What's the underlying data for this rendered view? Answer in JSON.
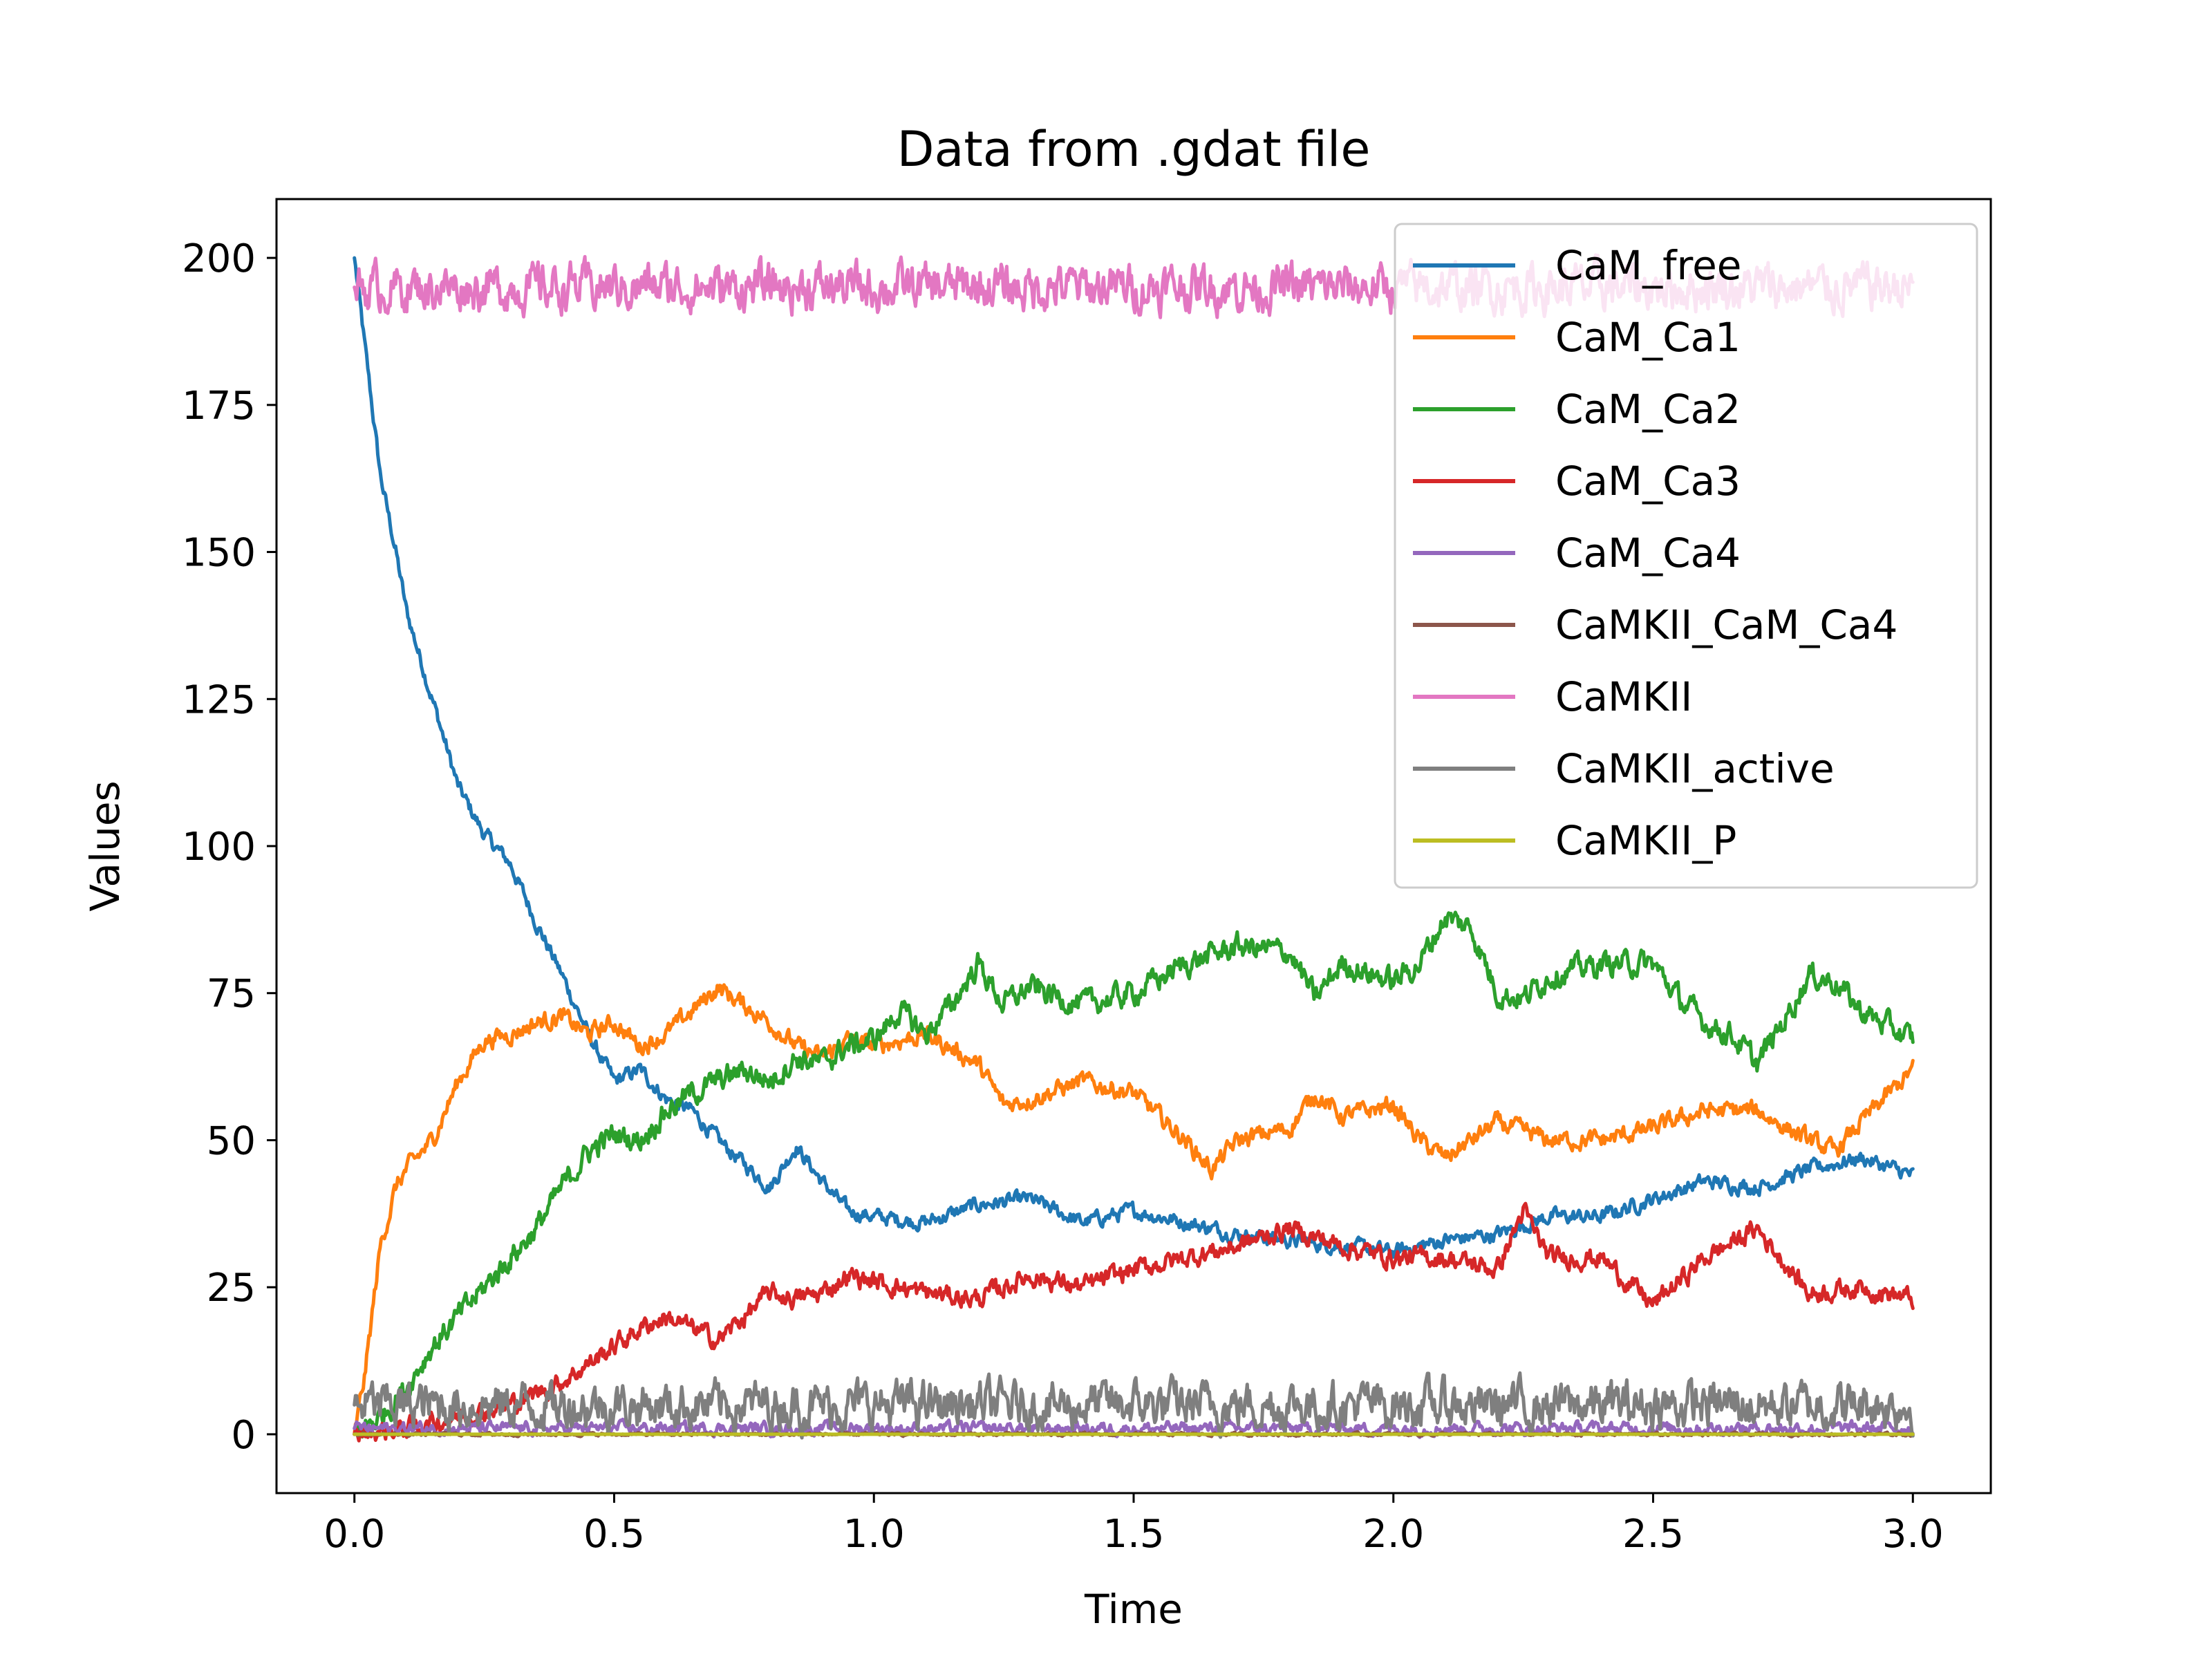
{
  "chart_data": {
    "type": "line",
    "title": "Data from .gdat file",
    "xlabel": "Time",
    "ylabel": "Values",
    "xlim": [
      -0.15,
      3.15
    ],
    "ylim": [
      -10,
      210
    ],
    "xticks": [
      0.0,
      0.5,
      1.0,
      1.5,
      2.0,
      2.5,
      3.0
    ],
    "xtick_labels": [
      "0.0",
      "0.5",
      "1.0",
      "1.5",
      "2.0",
      "2.5",
      "3.0"
    ],
    "yticks": [
      0,
      25,
      50,
      75,
      100,
      125,
      150,
      175,
      200
    ],
    "ytick_labels": [
      "0",
      "25",
      "50",
      "75",
      "100",
      "125",
      "150",
      "175",
      "200"
    ],
    "grid": false,
    "legend_position": "top-right",
    "series": [
      {
        "name": "CaM_free",
        "color": "#1f77b4",
        "noise": 1.0,
        "x": [
          0.0,
          0.02,
          0.05,
          0.08,
          0.1,
          0.15,
          0.2,
          0.25,
          0.3,
          0.35,
          0.4,
          0.45,
          0.5,
          0.55,
          0.6,
          0.65,
          0.7,
          0.75,
          0.8,
          0.85,
          0.9,
          0.95,
          1.0,
          1.1,
          1.2,
          1.3,
          1.4,
          1.5,
          1.6,
          1.7,
          1.8,
          1.9,
          2.0,
          2.1,
          2.2,
          2.3,
          2.4,
          2.5,
          2.6,
          2.7,
          2.8,
          2.9,
          3.0
        ],
        "y": [
          200,
          185,
          163,
          150,
          140,
          125,
          110,
          102,
          97,
          87,
          78,
          68,
          60,
          62,
          57,
          55,
          50,
          46,
          42,
          49,
          43,
          38,
          37,
          36,
          39,
          40,
          36,
          38,
          36,
          34,
          33,
          32,
          31,
          33,
          34,
          37,
          37,
          40,
          43,
          42,
          45,
          47,
          44
        ]
      },
      {
        "name": "CaM_Ca1",
        "color": "#ff7f0e",
        "noise": 1.2,
        "x": [
          0.0,
          0.02,
          0.05,
          0.08,
          0.1,
          0.15,
          0.2,
          0.25,
          0.3,
          0.35,
          0.4,
          0.45,
          0.5,
          0.55,
          0.6,
          0.65,
          0.7,
          0.75,
          0.8,
          0.85,
          0.9,
          0.95,
          1.0,
          1.1,
          1.2,
          1.25,
          1.3,
          1.4,
          1.5,
          1.6,
          1.65,
          1.7,
          1.8,
          1.85,
          1.9,
          2.0,
          2.05,
          2.1,
          2.2,
          2.3,
          2.4,
          2.5,
          2.6,
          2.7,
          2.8,
          2.85,
          2.9,
          3.0
        ],
        "y": [
          0,
          10,
          32,
          42,
          45,
          50,
          60,
          67,
          68,
          70,
          71,
          68,
          70,
          66,
          68,
          72,
          76,
          73,
          70,
          66,
          64,
          67,
          66,
          68,
          63,
          56,
          57,
          60,
          58,
          50,
          45,
          50,
          52,
          58,
          54,
          56,
          50,
          47,
          53,
          50,
          50,
          52,
          55,
          55,
          50,
          48,
          53,
          62
        ]
      },
      {
        "name": "CaM_Ca2",
        "color": "#2ca02c",
        "noise": 1.6,
        "x": [
          0.0,
          0.05,
          0.1,
          0.15,
          0.2,
          0.25,
          0.3,
          0.35,
          0.4,
          0.45,
          0.5,
          0.55,
          0.6,
          0.65,
          0.7,
          0.75,
          0.8,
          0.85,
          0.9,
          0.95,
          1.0,
          1.05,
          1.1,
          1.15,
          1.2,
          1.25,
          1.3,
          1.4,
          1.5,
          1.6,
          1.7,
          1.8,
          1.85,
          1.9,
          2.0,
          2.05,
          2.1,
          2.15,
          2.2,
          2.25,
          2.3,
          2.4,
          2.5,
          2.55,
          2.6,
          2.65,
          2.7,
          2.75,
          2.8,
          2.85,
          2.9,
          3.0
        ],
        "y": [
          0,
          3,
          8,
          15,
          20,
          25,
          30,
          35,
          42,
          48,
          51,
          50,
          55,
          58,
          60,
          62,
          60,
          64,
          63,
          66,
          67,
          72,
          68,
          73,
          80,
          73,
          76,
          73,
          75,
          80,
          83,
          82,
          74,
          80,
          77,
          80,
          88,
          86,
          75,
          74,
          78,
          80,
          80,
          74,
          70,
          68,
          63,
          70,
          78,
          77,
          72,
          67
        ]
      },
      {
        "name": "CaM_Ca3",
        "color": "#d62728",
        "noise": 1.3,
        "x": [
          0.0,
          0.1,
          0.2,
          0.3,
          0.35,
          0.4,
          0.45,
          0.5,
          0.55,
          0.6,
          0.65,
          0.7,
          0.75,
          0.8,
          0.85,
          0.9,
          0.95,
          1.0,
          1.1,
          1.2,
          1.3,
          1.4,
          1.5,
          1.6,
          1.7,
          1.8,
          1.9,
          2.0,
          2.1,
          2.2,
          2.25,
          2.3,
          2.4,
          2.5,
          2.6,
          2.7,
          2.8,
          2.9,
          3.0
        ],
        "y": [
          0,
          1,
          3,
          5,
          7,
          9,
          12,
          15,
          18,
          20,
          18,
          16,
          20,
          24,
          23,
          24,
          27,
          26,
          24,
          23,
          27,
          25,
          28,
          30,
          32,
          35,
          32,
          30,
          30,
          28,
          38,
          30,
          30,
          22,
          30,
          35,
          24,
          25,
          23
        ]
      },
      {
        "name": "CaM_Ca4",
        "color": "#9467bd",
        "noise": 0.8,
        "x": [
          0.0,
          0.5,
          1.0,
          1.5,
          2.0,
          2.5,
          3.0
        ],
        "y": [
          1,
          1,
          1,
          1,
          1,
          1,
          1
        ]
      },
      {
        "name": "CaMKII_CaM_Ca4",
        "color": "#8c564b",
        "noise": 0.2,
        "x": [
          0.0,
          1.0,
          2.0,
          3.0
        ],
        "y": [
          0,
          0,
          0,
          0
        ]
      },
      {
        "name": "CaMKII",
        "color": "#e377c2",
        "noise": 3.0,
        "x": [
          0.0,
          1.0,
          2.0,
          3.0
        ],
        "y": [
          195,
          195,
          195,
          195
        ]
      },
      {
        "name": "CaMKII_active",
        "color": "#7f7f7f",
        "noise": 3.0,
        "x": [
          0.0,
          1.0,
          2.0,
          3.0
        ],
        "y": [
          5,
          5,
          5,
          5
        ]
      },
      {
        "name": "CaMKII_P",
        "color": "#bcbd22",
        "noise": 0.0,
        "x": [
          0.0,
          3.0
        ],
        "y": [
          0,
          0
        ]
      }
    ]
  }
}
